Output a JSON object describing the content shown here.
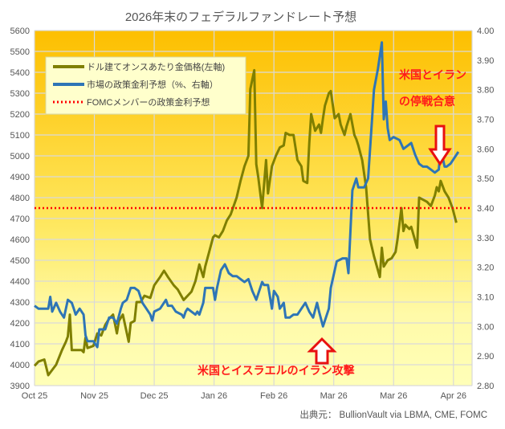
{
  "chart_data": {
    "type": "line",
    "title": "2026年末のフェデラルファンドレート予想",
    "source": "出典元： BullionVault via LBMA, CME, FOMC",
    "x_unit": "days since 1 Oct 2025",
    "xlim": [
      0,
      223
    ],
    "x_ticks": [
      {
        "day": 0,
        "label": "Oct 25"
      },
      {
        "day": 30.5,
        "label": "Nov 25"
      },
      {
        "day": 61,
        "label": "Dec 25"
      },
      {
        "day": 91.5,
        "label": "Jan 26"
      },
      {
        "day": 122,
        "label": "Feb 26"
      },
      {
        "day": 152.5,
        "label": "Mar 26"
      },
      {
        "day": 183,
        "label": "Mar 26"
      },
      {
        "day": 213.5,
        "label": "Apr 26"
      }
    ],
    "y_left": {
      "range": [
        3900,
        5600
      ],
      "ticks": [
        "3900",
        "4000",
        "4100",
        "4200",
        "4300",
        "4400",
        "4500",
        "4600",
        "4700",
        "4800",
        "4900",
        "5000",
        "5100",
        "5200",
        "5300",
        "5400",
        "5500",
        "5600"
      ]
    },
    "y_right": {
      "range": [
        2.8,
        4.0
      ],
      "ticks": [
        "2.80",
        "2.90",
        "3.00",
        "3.10",
        "3.20",
        "3.30",
        "3.40",
        "3.50",
        "3.60",
        "3.70",
        "3.80",
        "3.90",
        "4.00"
      ]
    },
    "grid": true,
    "legend_position": "top-left",
    "series": [
      {
        "name": "ドル建てオンスあたり金価格(左軸)",
        "axis": "left",
        "color": "#7f7f00",
        "points": [
          [
            0,
            3995
          ],
          [
            2,
            4015
          ],
          [
            5,
            4025
          ],
          [
            7,
            3950
          ],
          [
            9,
            3975
          ],
          [
            11,
            4000
          ],
          [
            14,
            4070
          ],
          [
            16,
            4110
          ],
          [
            17,
            4135
          ],
          [
            18,
            4240
          ],
          [
            19,
            4070
          ],
          [
            22,
            4070
          ],
          [
            24,
            4070
          ],
          [
            25,
            4060
          ],
          [
            26,
            4130
          ],
          [
            27,
            4080
          ],
          [
            30,
            4090
          ],
          [
            32,
            4150
          ],
          [
            34,
            4140
          ],
          [
            36,
            4190
          ],
          [
            38,
            4220
          ],
          [
            40,
            4240
          ],
          [
            42,
            4150
          ],
          [
            43,
            4210
          ],
          [
            45,
            4240
          ],
          [
            48,
            4110
          ],
          [
            49,
            4200
          ],
          [
            51,
            4210
          ],
          [
            52,
            4300
          ],
          [
            54,
            4300
          ],
          [
            56,
            4330
          ],
          [
            59,
            4320
          ],
          [
            61,
            4380
          ],
          [
            64,
            4420
          ],
          [
            66,
            4450
          ],
          [
            68,
            4420
          ],
          [
            71,
            4380
          ],
          [
            73,
            4360
          ],
          [
            76,
            4310
          ],
          [
            77,
            4320
          ],
          [
            80,
            4350
          ],
          [
            82,
            4400
          ],
          [
            84,
            4480
          ],
          [
            86,
            4420
          ],
          [
            87,
            4470
          ],
          [
            89,
            4540
          ],
          [
            91,
            4610
          ],
          [
            92,
            4620
          ],
          [
            94,
            4610
          ],
          [
            96,
            4640
          ],
          [
            98,
            4690
          ],
          [
            100,
            4720
          ],
          [
            103,
            4800
          ],
          [
            105,
            4880
          ],
          [
            107,
            4950
          ],
          [
            109,
            5000
          ],
          [
            110,
            5320
          ],
          [
            112,
            5410
          ],
          [
            113,
            4960
          ],
          [
            114,
            4900
          ],
          [
            116,
            4750
          ],
          [
            118,
            4980
          ],
          [
            119,
            4820
          ],
          [
            121,
            4950
          ],
          [
            123,
            5000
          ],
          [
            125,
            5040
          ],
          [
            127,
            5050
          ],
          [
            128,
            5110
          ],
          [
            130,
            5100
          ],
          [
            132,
            5100
          ],
          [
            134,
            4980
          ],
          [
            136,
            4950
          ],
          [
            137,
            4880
          ],
          [
            139,
            4870
          ],
          [
            140,
            5060
          ],
          [
            141,
            5200
          ],
          [
            143,
            5120
          ],
          [
            145,
            5150
          ],
          [
            146,
            5110
          ],
          [
            147,
            5180
          ],
          [
            148,
            5240
          ],
          [
            150,
            5300
          ],
          [
            151,
            5310
          ],
          [
            153,
            5180
          ],
          [
            155,
            5200
          ],
          [
            156,
            5150
          ],
          [
            158,
            5100
          ],
          [
            159,
            5140
          ],
          [
            161,
            5200
          ],
          [
            163,
            5100
          ],
          [
            164,
            5080
          ],
          [
            165,
            5050
          ],
          [
            167,
            4980
          ],
          [
            169,
            4850
          ],
          [
            171,
            4600
          ],
          [
            173,
            4520
          ],
          [
            176,
            4420
          ],
          [
            177,
            4560
          ],
          [
            178,
            4470
          ],
          [
            180,
            4500
          ],
          [
            182,
            4510
          ],
          [
            184,
            4540
          ],
          [
            185,
            4600
          ],
          [
            187,
            4750
          ],
          [
            188,
            4640
          ],
          [
            189,
            4670
          ],
          [
            191,
            4650
          ],
          [
            192,
            4660
          ],
          [
            195,
            4560
          ],
          [
            196,
            4800
          ],
          [
            198,
            4790
          ],
          [
            200,
            4780
          ],
          [
            202,
            4760
          ],
          [
            204,
            4810
          ],
          [
            205,
            4850
          ],
          [
            206,
            4830
          ],
          [
            207,
            4880
          ],
          [
            209,
            4830
          ],
          [
            211,
            4800
          ],
          [
            213,
            4750
          ],
          [
            215,
            4680
          ]
        ]
      },
      {
        "name": "市場の政策金利予想（%、右軸）",
        "axis": "right",
        "color": "#2e75b6",
        "points": [
          [
            0,
            3.07
          ],
          [
            2,
            3.06
          ],
          [
            7,
            3.06
          ],
          [
            8,
            3.1
          ],
          [
            9,
            3.05
          ],
          [
            11,
            3.08
          ],
          [
            13,
            3.05
          ],
          [
            15,
            3.03
          ],
          [
            17,
            3.09
          ],
          [
            19,
            3.08
          ],
          [
            20,
            3.06
          ],
          [
            21,
            3.04
          ],
          [
            23,
            3.06
          ],
          [
            25,
            3.04
          ],
          [
            26,
            2.97
          ],
          [
            27,
            2.95
          ],
          [
            30,
            2.95
          ],
          [
            32,
            2.93
          ],
          [
            33,
            2.99
          ],
          [
            35,
            2.99
          ],
          [
            36,
            2.99
          ],
          [
            38,
            3.03
          ],
          [
            40,
            3.03
          ],
          [
            42,
            3.01
          ],
          [
            44,
            3.06
          ],
          [
            45,
            3.08
          ],
          [
            47,
            3.09
          ],
          [
            49,
            3.13
          ],
          [
            51,
            3.13
          ],
          [
            53,
            3.12
          ],
          [
            54,
            3.1
          ],
          [
            55,
            3.08
          ],
          [
            57,
            3.06
          ],
          [
            59,
            3.04
          ],
          [
            60,
            3.02
          ],
          [
            61,
            3.05
          ],
          [
            64,
            3.06
          ],
          [
            67,
            3.09
          ],
          [
            68,
            3.07
          ],
          [
            70,
            3.07
          ],
          [
            72,
            3.05
          ],
          [
            75,
            3.04
          ],
          [
            76,
            3.03
          ],
          [
            77,
            3.05
          ],
          [
            78,
            3.06
          ],
          [
            80,
            3.05
          ],
          [
            82,
            3.04
          ],
          [
            83,
            3.05
          ],
          [
            84,
            3.04
          ],
          [
            86,
            3.08
          ],
          [
            87,
            3.13
          ],
          [
            89,
            3.13
          ],
          [
            91,
            3.13
          ],
          [
            92,
            3.09
          ],
          [
            93,
            3.13
          ],
          [
            95,
            3.19
          ],
          [
            97,
            3.21
          ],
          [
            99,
            3.18
          ],
          [
            101,
            3.17
          ],
          [
            103,
            3.17
          ],
          [
            105,
            3.16
          ],
          [
            107,
            3.15
          ],
          [
            109,
            3.16
          ],
          [
            111,
            3.12
          ],
          [
            113,
            3.09
          ],
          [
            116,
            3.15
          ],
          [
            117,
            3.14
          ],
          [
            119,
            3.14
          ],
          [
            121,
            3.06
          ],
          [
            122,
            3.12
          ],
          [
            124,
            3.1
          ],
          [
            125,
            3.06
          ],
          [
            127,
            3.08
          ],
          [
            128,
            3.03
          ],
          [
            130,
            3.03
          ],
          [
            132,
            3.04
          ],
          [
            134,
            3.04
          ],
          [
            136,
            3.06
          ],
          [
            138,
            3.08
          ],
          [
            140,
            3.05
          ],
          [
            142,
            3.03
          ],
          [
            144,
            3.08
          ],
          [
            145,
            3.05
          ],
          [
            147,
            3.0
          ],
          [
            150,
            3.06
          ],
          [
            151,
            3.13
          ],
          [
            154,
            3.22
          ],
          [
            157,
            3.23
          ],
          [
            159,
            3.23
          ],
          [
            160,
            3.18
          ],
          [
            162,
            3.46
          ],
          [
            164,
            3.5
          ],
          [
            165,
            3.47
          ],
          [
            168,
            3.47
          ],
          [
            170,
            3.5
          ],
          [
            172,
            3.7
          ],
          [
            173,
            3.8
          ],
          [
            175,
            3.87
          ],
          [
            177,
            3.96
          ],
          [
            178,
            3.7
          ],
          [
            179,
            3.76
          ],
          [
            180,
            3.67
          ],
          [
            181,
            3.63
          ],
          [
            183,
            3.64
          ],
          [
            186,
            3.63
          ],
          [
            188,
            3.6
          ],
          [
            190,
            3.61
          ],
          [
            192,
            3.62
          ],
          [
            194,
            3.58
          ],
          [
            196,
            3.55
          ],
          [
            198,
            3.54
          ],
          [
            200,
            3.54
          ],
          [
            202,
            3.53
          ],
          [
            204,
            3.52
          ],
          [
            206,
            3.53
          ],
          [
            207,
            3.6
          ],
          [
            209,
            3.54
          ],
          [
            210,
            3.54
          ],
          [
            212,
            3.55
          ],
          [
            214,
            3.57
          ],
          [
            216,
            3.59
          ]
        ]
      },
      {
        "name": "FOMCメンバーの政策金利予想",
        "axis": "right",
        "color": "#ff0000",
        "style": "dotted",
        "value": 3.4
      }
    ],
    "annotations": [
      {
        "text": "米国とイラン",
        "color": "#ff1a1a"
      },
      {
        "text": "の停戦合意",
        "color": "#ff1a1a"
      },
      {
        "text": "米国とイスラエルのイラン攻撃",
        "color": "#ff1a1a"
      }
    ]
  }
}
